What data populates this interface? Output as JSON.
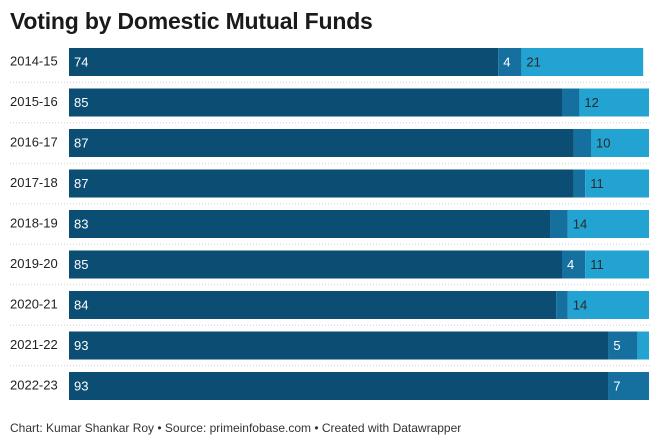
{
  "title": "Voting by Domestic Mutual Funds",
  "footer": "Chart: Kumar Shankar Roy • Source: primeinfobase.com • Created with Datawrapper",
  "colors": {
    "seg1": "#0b4d73",
    "seg2": "#15709f",
    "seg3": "#22a3d1",
    "label_light": "#ffffff",
    "label_dark": "#2a2a2a",
    "separator": "#cfcfcf"
  },
  "chart_data": {
    "type": "bar",
    "orientation": "horizontal",
    "stacked": true,
    "categories": [
      "2014-15",
      "2015-16",
      "2016-17",
      "2017-18",
      "2018-19",
      "2019-20",
      "2020-21",
      "2021-22",
      "2022-23"
    ],
    "xlim": [
      0,
      100
    ],
    "series": [
      {
        "values": [
          74,
          85,
          87,
          87,
          83,
          85,
          84,
          93,
          93
        ],
        "labels": [
          "74",
          "85",
          "87",
          "87",
          "83",
          "85",
          "84",
          "93",
          "93"
        ]
      },
      {
        "values": [
          4,
          3,
          3,
          2,
          3,
          4,
          2,
          5,
          7
        ],
        "labels": [
          "4",
          "",
          "",
          "",
          "",
          "4",
          "",
          "5",
          "7"
        ]
      },
      {
        "values": [
          21,
          12,
          10,
          11,
          14,
          11,
          14,
          2,
          0
        ],
        "labels": [
          "21",
          "12",
          "10",
          "11",
          "14",
          "11",
          "14",
          "",
          ""
        ]
      }
    ]
  }
}
